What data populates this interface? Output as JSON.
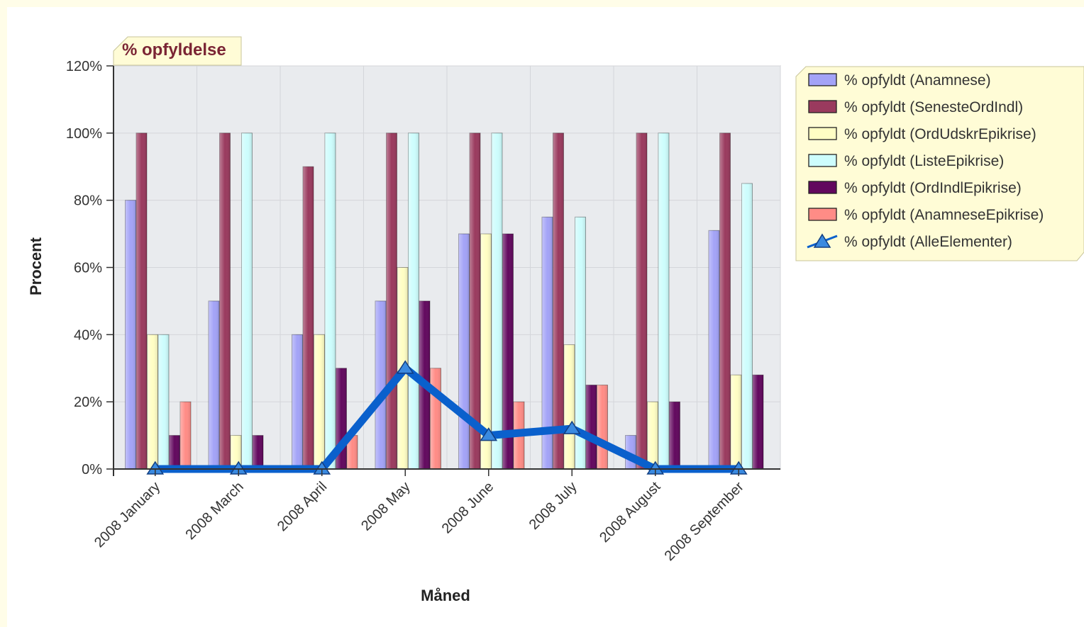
{
  "colors": {
    "page_border": "#fffde8",
    "plot_background": "#e9ebee",
    "grid": "#d4d6da",
    "title_box": "#fffcd6",
    "title_text": "#7a2434",
    "legend_box": "#fffcd6",
    "line_series": "#0a60cc"
  },
  "chart_data": {
    "type": "bar",
    "title": "% opfyldelse",
    "xlabel": "Måned",
    "ylabel": "Procent",
    "ylim": [
      0,
      120
    ],
    "y_ticks": [
      "0%",
      "20%",
      "40%",
      "60%",
      "80%",
      "100%",
      "120%"
    ],
    "grid": true,
    "legend_position": "right",
    "categories": [
      "2008 January",
      "2008 March",
      "2008 April",
      "2008 May",
      "2008 June",
      "2008 July",
      "2008 August",
      "2008 September"
    ],
    "series": [
      {
        "name": "% opfyldt (Anamnese)",
        "type": "bar",
        "color": "#a3a3f7",
        "icon": "bar-swatch",
        "values": [
          80,
          50,
          40,
          50,
          70,
          75,
          10,
          71
        ]
      },
      {
        "name": "% opfyldt (SenesteOrdIndl)",
        "type": "bar",
        "color": "#9a3a5e",
        "icon": "bar-swatch",
        "values": [
          100,
          100,
          90,
          100,
          100,
          100,
          100,
          100
        ]
      },
      {
        "name": "% opfyldt (OrdUdskrEpikrise)",
        "type": "bar",
        "color": "#fffec4",
        "icon": "bar-swatch",
        "values": [
          40,
          10,
          40,
          60,
          70,
          37,
          20,
          28
        ]
      },
      {
        "name": "% opfyldt (ListeEpikrise)",
        "type": "bar",
        "color": "#cdfdfd",
        "icon": "bar-swatch",
        "values": [
          40,
          100,
          100,
          100,
          100,
          75,
          100,
          85
        ]
      },
      {
        "name": "% opfyldt (OrdIndlEpikrise)",
        "type": "bar",
        "color": "#62085e",
        "icon": "bar-swatch",
        "values": [
          10,
          10,
          30,
          50,
          70,
          25,
          20,
          28
        ]
      },
      {
        "name": "% opfyldt (AnamneseEpikrise)",
        "type": "bar",
        "color": "#ff8c86",
        "icon": "bar-swatch",
        "values": [
          20,
          0,
          10,
          30,
          20,
          25,
          0,
          0
        ]
      },
      {
        "name": "% opfyldt (AlleElementer)",
        "type": "line",
        "color": "#0a60cc",
        "icon": "triangle-marker-icon",
        "values": [
          0,
          0,
          0,
          30,
          10,
          12,
          0,
          0
        ]
      }
    ]
  }
}
